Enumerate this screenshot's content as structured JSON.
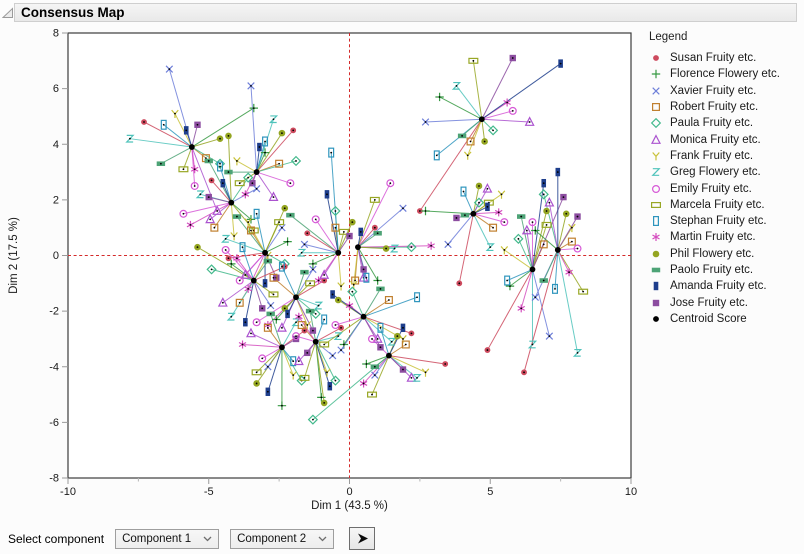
{
  "window": {
    "title": "Consensus Map"
  },
  "controls": {
    "label": "Select component",
    "component1": "Component 1",
    "component2": "Component 2",
    "run_icon": "play-arrow-icon"
  },
  "chart_data": {
    "type": "scatter",
    "subtype": "consensus-map-spider-plot",
    "title": "Consensus Map",
    "xlabel": "Dim 1  (43.5 %)",
    "ylabel": "Dim 2  (17.5 %)",
    "xlim": [
      -10,
      10
    ],
    "ylim": [
      -8,
      8
    ],
    "xticks": [
      -10,
      -5,
      0,
      5,
      10
    ],
    "yticks": [
      -8,
      -6,
      -4,
      -2,
      0,
      2,
      4,
      6,
      8
    ],
    "grid": false,
    "reference_lines": {
      "x": 0,
      "y": 0,
      "style": "dashed",
      "color": "#d42a2a"
    },
    "legend_title": "Legend",
    "legend_position": "right",
    "assessors": [
      {
        "label": "Susan Fruity etc.",
        "marker": "dot",
        "color": "#cd4a5e"
      },
      {
        "label": "Florence Flowery etc.",
        "marker": "plus",
        "color": "#379a43"
      },
      {
        "label": "Xavier Fruity etc.",
        "marker": "x",
        "color": "#6e7fd9"
      },
      {
        "label": "Robert Fruity etc.",
        "marker": "square",
        "color": "#c07f2e"
      },
      {
        "label": "Paula Fruity etc.",
        "marker": "diamond",
        "color": "#43b98c"
      },
      {
        "label": "Monica Fruity etc.",
        "marker": "triangle",
        "color": "#ab53cf"
      },
      {
        "label": "Frank Fruity etc.",
        "marker": "Y",
        "color": "#c9c23a"
      },
      {
        "label": "Greg Flowery etc.",
        "marker": "Z",
        "color": "#4fc3bb"
      },
      {
        "label": "Emily Fruity etc.",
        "marker": "circle",
        "color": "#d658d6"
      },
      {
        "label": "Marcela Fruity etc.",
        "marker": "hrect",
        "color": "#98a725"
      },
      {
        "label": "Stephan Fruity etc.",
        "marker": "vrect",
        "color": "#2e95bd"
      },
      {
        "label": "Martin Fruity etc.",
        "marker": "asterisk",
        "color": "#d44cbe"
      },
      {
        "label": "Phil Flowery etc.",
        "marker": "dotf",
        "color": "#94a521"
      },
      {
        "label": "Paolo Fruity etc.",
        "marker": "hrectf",
        "color": "#4da376"
      },
      {
        "label": "Amanda Fruity etc.",
        "marker": "vrectf",
        "color": "#1e3e8c"
      },
      {
        "label": "Jose Fruity etc.",
        "marker": "squaref",
        "color": "#8c4da0"
      },
      {
        "label": "Centroid Score",
        "marker": "centroid",
        "color": "#000000"
      }
    ],
    "clusters": [
      {
        "centroid": [
          -5.6,
          3.9
        ],
        "points": [
          [
            -7.3,
            4.8
          ],
          [
            -3.4,
            5.3
          ],
          [
            -6.4,
            6.7
          ],
          [
            -5.1,
            3.5
          ],
          [
            -4.6,
            3.3
          ],
          [
            -4.7,
            1.6
          ],
          [
            -6.2,
            5.1
          ],
          [
            -7.8,
            4.2
          ],
          [
            -5.5,
            2.5
          ],
          [
            -5.9,
            3.1
          ],
          [
            -6.6,
            4.7
          ],
          [
            -5.5,
            3.1
          ],
          [
            -4.6,
            4.2
          ],
          [
            -6.7,
            3.3
          ],
          [
            -5.8,
            4.5
          ],
          [
            -5.4,
            4.7
          ]
        ]
      },
      {
        "centroid": [
          -3.3,
          3.0
        ],
        "points": [
          [
            -2.0,
            4.5
          ],
          [
            -3.0,
            3.7
          ],
          [
            -3.5,
            6.1
          ],
          [
            -2.5,
            3.3
          ],
          [
            -1.9,
            3.4
          ],
          [
            -2.7,
            2.1
          ],
          [
            -4.0,
            3.4
          ],
          [
            -2.7,
            4.9
          ],
          [
            -2.1,
            2.6
          ],
          [
            -3.9,
            2.6
          ],
          [
            -3.0,
            4.1
          ],
          [
            -3.7,
            2.2
          ],
          [
            -2.4,
            4.4
          ],
          [
            -4.3,
            3.0
          ],
          [
            -3.2,
            3.9
          ],
          [
            -3.45,
            2.6
          ]
        ]
      },
      {
        "centroid": [
          -4.2,
          1.9
        ],
        "points": [
          [
            -4.9,
            2.7
          ],
          [
            -3.5,
            1.3
          ],
          [
            -3.3,
            2.4
          ],
          [
            -4.8,
            1.0
          ],
          [
            -3.6,
            2.8
          ],
          [
            -4.95,
            1.3
          ],
          [
            -4.1,
            0.7
          ],
          [
            -5.3,
            2.2
          ],
          [
            -5.9,
            1.5
          ],
          [
            -3.4,
            0.9
          ],
          [
            -4.6,
            3.2
          ],
          [
            -5.65,
            1.1
          ],
          [
            -4.3,
            4.3
          ],
          [
            -5.0,
            3.4
          ],
          [
            -4.5,
            2.6
          ],
          [
            -5.0,
            2.1
          ]
        ]
      },
      {
        "centroid": [
          -3.0,
          0.1
        ],
        "points": [
          [
            -4.3,
            -0.1
          ],
          [
            -2.2,
            0.5
          ],
          [
            -2.4,
            1.0
          ],
          [
            -3.5,
            0.9
          ],
          [
            -2.3,
            -0.3
          ],
          [
            -3.7,
            -0.7
          ],
          [
            -3.6,
            1.2
          ],
          [
            -4.4,
            0.6
          ],
          [
            -3.9,
            -0.9
          ],
          [
            -2.5,
            1.2
          ],
          [
            -3.3,
            1.5
          ],
          [
            -3.6,
            -1.2
          ],
          [
            -2.3,
            1.7
          ],
          [
            -4.0,
            1.4
          ],
          [
            -3.0,
            -1.0
          ],
          [
            -2.6,
            -0.8
          ]
        ]
      },
      {
        "centroid": [
          -3.4,
          -0.9
        ],
        "points": [
          [
            -2.3,
            -0.4
          ],
          [
            -4.2,
            -0.3
          ],
          [
            -2.8,
            -1.8
          ],
          [
            -3.9,
            -1.7
          ],
          [
            -4.9,
            -0.5
          ],
          [
            -4.5,
            -1.7
          ],
          [
            -2.9,
            0.0
          ],
          [
            -4.2,
            -2.2
          ],
          [
            -4.4,
            0.2
          ],
          [
            -2.7,
            -1.4
          ],
          [
            -3.8,
            0.3
          ],
          [
            -4.0,
            -0.1
          ],
          [
            -5.4,
            0.3
          ],
          [
            -2.9,
            -0.2
          ],
          [
            -3.7,
            -2.4
          ],
          [
            -3.1,
            -1.9
          ]
        ]
      },
      {
        "centroid": [
          -1.9,
          -1.5
        ],
        "points": [
          [
            -0.9,
            -0.9
          ],
          [
            -2.6,
            -2.3
          ],
          [
            -1.3,
            -0.5
          ],
          [
            -2.7,
            -0.8
          ],
          [
            -1.2,
            -2.1
          ],
          [
            -2.4,
            -2.6
          ],
          [
            -1.5,
            -2.5
          ],
          [
            -1.1,
            -1.8
          ],
          [
            -3.3,
            -2.4
          ],
          [
            -1.4,
            -1.0
          ],
          [
            -2.4,
            -0.4
          ],
          [
            -2.9,
            -2.5
          ],
          [
            -2.3,
            -1.9
          ],
          [
            -1.6,
            -0.6
          ],
          [
            -2.2,
            -2.1
          ],
          [
            -1.3,
            -2.7
          ]
        ]
      },
      {
        "centroid": [
          -2.4,
          -3.3
        ],
        "points": [
          [
            -1.6,
            -2.7
          ],
          [
            -2.4,
            -5.4
          ],
          [
            -2.9,
            -4.0
          ],
          [
            -2.9,
            -2.6
          ],
          [
            -1.7,
            -4.5
          ],
          [
            -3.5,
            -2.8
          ],
          [
            -2.0,
            -4.3
          ],
          [
            -1.9,
            -2.4
          ],
          [
            -3.1,
            -3.7
          ],
          [
            -3.3,
            -4.2
          ],
          [
            -2.0,
            -3.8
          ],
          [
            -3.8,
            -3.2
          ],
          [
            -3.3,
            -4.6
          ],
          [
            -2.8,
            -2.1
          ],
          [
            -2.9,
            -4.9
          ],
          [
            -1.9,
            -3.0
          ]
        ]
      },
      {
        "centroid": [
          -1.2,
          -3.1
        ],
        "points": [
          [
            -0.3,
            -2.6
          ],
          [
            -1.0,
            -5.1
          ],
          [
            -0.6,
            -3.6
          ],
          [
            -1.7,
            -2.5
          ],
          [
            -0.5,
            -4.5
          ],
          [
            -1.8,
            -3.8
          ],
          [
            -0.8,
            -4.2
          ],
          [
            -0.4,
            -2.9
          ],
          [
            -1.9,
            -2.9
          ],
          [
            -1.6,
            -4.4
          ],
          [
            -0.9,
            -2.3
          ],
          [
            -1.8,
            -2.2
          ],
          [
            -0.9,
            -5.3
          ],
          [
            -1.4,
            -2.0
          ],
          [
            -0.7,
            -4.7
          ],
          [
            -1.5,
            -3.5
          ]
        ]
      },
      {
        "centroid": [
          -0.4,
          0.1
        ],
        "points": [
          [
            -1.5,
            0.8
          ],
          [
            -1.3,
            -0.3
          ],
          [
            -1.6,
            0.4
          ],
          [
            -0.5,
            1.0
          ],
          [
            -0.5,
            1.6
          ],
          [
            -0.9,
            -0.7
          ],
          [
            -0.3,
            -1.1
          ],
          [
            -1.7,
            0.1
          ],
          [
            -1.2,
            1.3
          ],
          [
            -0.2,
            0.85
          ],
          [
            -0.65,
            3.7
          ],
          [
            -1.1,
            -0.9
          ],
          [
            0.1,
            1.2
          ],
          [
            -2.1,
            1.45
          ],
          [
            -0.8,
            2.2
          ],
          [
            0.0,
            0.7
          ]
        ]
      },
      {
        "centroid": [
          0.3,
          0.3
        ],
        "points": [
          [
            0.9,
            1.0
          ],
          [
            1.0,
            -0.9
          ],
          [
            1.9,
            1.7
          ],
          [
            0.2,
            -0.9
          ],
          [
            2.2,
            0.3
          ],
          [
            0.5,
            -0.8
          ],
          [
            0.15,
            -1.05
          ],
          [
            1.6,
            0.25
          ],
          [
            1.45,
            2.6
          ],
          [
            0.9,
            2.0
          ],
          [
            0.6,
            -0.8
          ],
          [
            2.9,
            0.35
          ],
          [
            1.3,
            0.25
          ],
          [
            1.0,
            0.8
          ],
          [
            0.4,
            0.85
          ],
          [
            0.5,
            -0.5
          ]
        ]
      },
      {
        "centroid": [
          0.5,
          -2.2
        ],
        "points": [
          [
            2.2,
            -2.8
          ],
          [
            -0.2,
            -3.2
          ],
          [
            -0.3,
            -3.4
          ],
          [
            1.4,
            -1.6
          ],
          [
            0.1,
            -1.3
          ],
          [
            1.0,
            -3.0
          ],
          [
            1.9,
            -3.0
          ],
          [
            1.5,
            -3.1
          ],
          [
            -0.5,
            -2.5
          ],
          [
            -0.9,
            -3.2
          ],
          [
            2.4,
            -1.5
          ],
          [
            0.0,
            -1.8
          ],
          [
            -0.4,
            -1.6
          ],
          [
            1.1,
            -1.2
          ],
          [
            -0.6,
            -1.4
          ],
          [
            1.1,
            -3.3
          ]
        ]
      },
      {
        "centroid": [
          1.4,
          -3.6
        ],
        "points": [
          [
            3.4,
            -3.9
          ],
          [
            0.6,
            -3.9
          ],
          [
            0.9,
            -4.3
          ],
          [
            2.0,
            -3.2
          ],
          [
            -1.3,
            -5.9
          ],
          [
            2.2,
            -4.4
          ],
          [
            2.7,
            -4.2
          ],
          [
            2.4,
            -4.4
          ],
          [
            0.8,
            -3.0
          ],
          [
            0.8,
            -5.0
          ],
          [
            1.1,
            -2.6
          ],
          [
            0.5,
            -4.6
          ],
          [
            1.7,
            -2.9
          ],
          [
            0.9,
            -4.0
          ],
          [
            1.9,
            -2.6
          ],
          [
            1.9,
            -4.1
          ]
        ]
      },
      {
        "centroid": [
          4.7,
          4.9
        ],
        "points": [
          [
            2.5,
            1.6
          ],
          [
            3.2,
            5.7
          ],
          [
            2.7,
            4.8
          ],
          [
            4.3,
            4.1
          ],
          [
            5.1,
            4.5
          ],
          [
            6.4,
            4.8
          ],
          [
            4.2,
            3.6
          ],
          [
            3.8,
            6.1
          ],
          [
            5.8,
            5.2
          ],
          [
            4.4,
            7.0
          ],
          [
            3.1,
            3.6
          ],
          [
            5.6,
            5.5
          ],
          [
            4.8,
            4.1
          ],
          [
            4.0,
            4.3
          ],
          [
            7.5,
            6.9
          ],
          [
            5.8,
            7.1
          ]
        ]
      },
      {
        "centroid": [
          4.4,
          1.5
        ],
        "points": [
          [
            3.9,
            -1.0
          ],
          [
            2.7,
            1.6
          ],
          [
            3.5,
            0.4
          ],
          [
            5.1,
            1.0
          ],
          [
            4.6,
            1.9
          ],
          [
            4.9,
            2.4
          ],
          [
            5.4,
            2.2
          ],
          [
            5.0,
            0.3
          ],
          [
            5.5,
            1.2
          ],
          [
            4.95,
            1.9
          ],
          [
            4.05,
            2.3
          ],
          [
            5.3,
            1.55
          ],
          [
            4.6,
            2.5
          ],
          [
            4.1,
            1.45
          ],
          [
            4.9,
            1.75
          ],
          [
            3.8,
            1.35
          ]
        ]
      },
      {
        "centroid": [
          6.5,
          -0.5
        ],
        "points": [
          [
            4.9,
            -3.4
          ],
          [
            5.7,
            -1.1
          ],
          [
            7.1,
            -2.9
          ],
          [
            6.9,
            0.4
          ],
          [
            6.0,
            0.6
          ],
          [
            6.3,
            0.9
          ],
          [
            5.5,
            0.2
          ],
          [
            6.5,
            -3.2
          ],
          [
            6.5,
            1.2
          ],
          [
            7.0,
            1.1
          ],
          [
            5.6,
            -0.9
          ],
          [
            6.1,
            -1.9
          ],
          [
            7.0,
            1.6
          ],
          [
            6.1,
            1.4
          ],
          [
            6.9,
            2.6
          ],
          [
            7.6,
            2.1
          ]
        ]
      },
      {
        "centroid": [
          7.4,
          0.2
        ],
        "points": [
          [
            6.2,
            -4.2
          ],
          [
            6.6,
            0.9
          ],
          [
            6.6,
            -1.5
          ],
          [
            7.9,
            0.5
          ],
          [
            6.9,
            2.2
          ],
          [
            7.1,
            1.9
          ],
          [
            7.9,
            1.0
          ],
          [
            8.1,
            -3.5
          ],
          [
            8.1,
            0.25
          ],
          [
            8.3,
            -1.3
          ],
          [
            7.3,
            -1.2
          ],
          [
            7.8,
            -0.6
          ],
          [
            7.7,
            1.5
          ],
          [
            6.9,
            -0.9
          ],
          [
            7.4,
            3.0
          ],
          [
            8.1,
            1.4
          ]
        ]
      }
    ]
  }
}
